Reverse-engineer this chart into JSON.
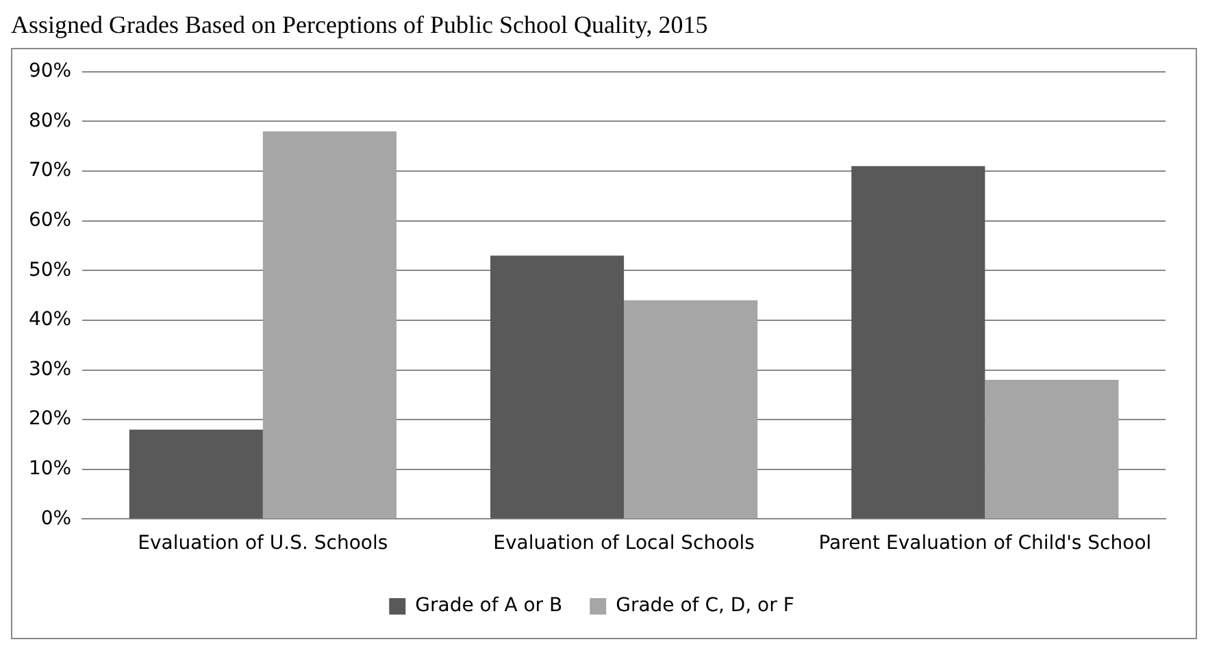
{
  "chart_data": {
    "type": "bar",
    "title": "Assigned Grades Based on Perceptions of Public School Quality, 2015",
    "categories": [
      "Evaluation of U.S. Schools",
      "Evaluation of Local Schools",
      "Parent Evaluation of Child's School"
    ],
    "series": [
      {
        "name": "Grade of A or B",
        "color": "#595959",
        "values": [
          18,
          53,
          71
        ]
      },
      {
        "name": "Grade of C, D, or F",
        "color": "#a6a6a6",
        "values": [
          78,
          44,
          28
        ]
      }
    ],
    "ylim": [
      0,
      90
    ],
    "yticks": [
      {
        "value": 0,
        "label": "0%"
      },
      {
        "value": 10,
        "label": "10%"
      },
      {
        "value": 20,
        "label": "20%"
      },
      {
        "value": 30,
        "label": "30%"
      },
      {
        "value": 40,
        "label": "40%"
      },
      {
        "value": 50,
        "label": "50%"
      },
      {
        "value": 60,
        "label": "60%"
      },
      {
        "value": 70,
        "label": "70%"
      },
      {
        "value": 80,
        "label": "80%"
      },
      {
        "value": 90,
        "label": "90%"
      }
    ],
    "grid": "y",
    "legend": "bottom"
  }
}
